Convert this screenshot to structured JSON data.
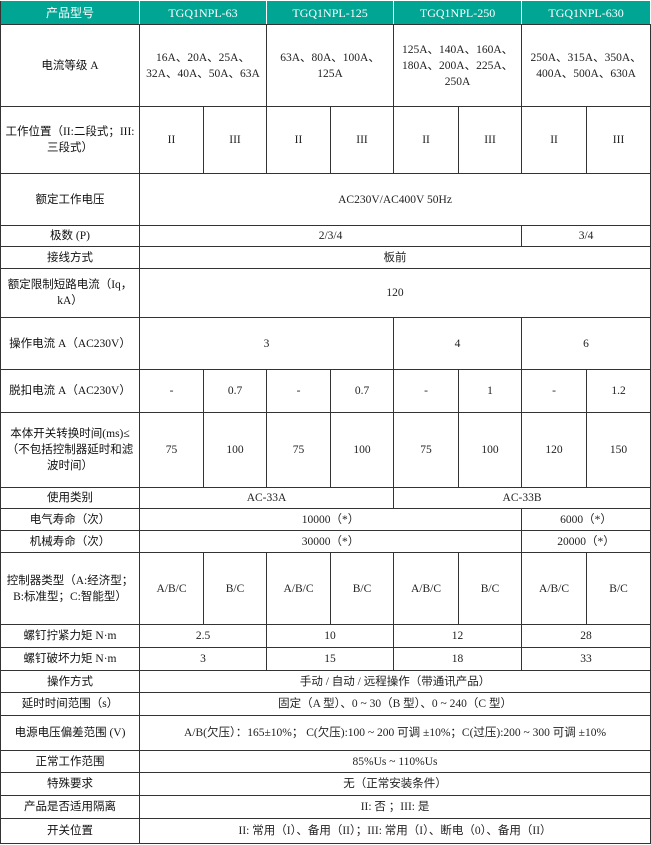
{
  "header": [
    "产品型号",
    "TGQ1NPL-63",
    "TGQ1NPL-125",
    "TGQ1NPL-250",
    "TGQ1NPL-630"
  ],
  "rows": [
    {
      "label": "电流等级 A",
      "cells": [
        {
          "text": "16A、20A、25A、32A、40A、50A、63A",
          "span": 2
        },
        {
          "text": "63A、80A、100A、125A",
          "span": 2
        },
        {
          "text": "125A、140A、160A、180A、200A、225A、250A",
          "span": 2
        },
        {
          "text": "250A、315A、350A、400A、500A、630A",
          "span": 2
        }
      ]
    },
    {
      "label": "工作位置（II:二段式；III:三段式）",
      "cells": [
        {
          "text": "II"
        },
        {
          "text": "III"
        },
        {
          "text": "II"
        },
        {
          "text": "III"
        },
        {
          "text": "II"
        },
        {
          "text": "III"
        },
        {
          "text": "II"
        },
        {
          "text": "III"
        }
      ]
    },
    {
      "label": "额定工作电压",
      "cells": [
        {
          "text": "AC230V/AC400V 50Hz",
          "span": 8
        }
      ]
    },
    {
      "label": "极数 (P)",
      "cells": [
        {
          "text": "2/3/4",
          "span": 6
        },
        {
          "text": "3/4",
          "span": 2
        }
      ]
    },
    {
      "label": "接线方式",
      "cells": [
        {
          "text": "板前",
          "span": 8
        }
      ]
    },
    {
      "label": "额定限制短路电流（Iq，kA）",
      "cells": [
        {
          "text": "120",
          "span": 8
        }
      ]
    },
    {
      "label": "操作电流 A（AC230V）",
      "cells": [
        {
          "text": "3",
          "span": 4
        },
        {
          "text": "4",
          "span": 2
        },
        {
          "text": "6",
          "span": 2
        }
      ]
    },
    {
      "label": "脱扣电流 A（AC230V）",
      "cells": [
        {
          "text": "-"
        },
        {
          "text": "0.7"
        },
        {
          "text": "-"
        },
        {
          "text": "0.7"
        },
        {
          "text": "-"
        },
        {
          "text": "1"
        },
        {
          "text": "-"
        },
        {
          "text": "1.2"
        }
      ]
    },
    {
      "label": "本体开关转换时间(ms)≤（不包括控制器延时和滤波时间）",
      "cells": [
        {
          "text": "75"
        },
        {
          "text": "100"
        },
        {
          "text": "75"
        },
        {
          "text": "100"
        },
        {
          "text": "75"
        },
        {
          "text": "100"
        },
        {
          "text": "120"
        },
        {
          "text": "150"
        }
      ]
    },
    {
      "label": "使用类别",
      "cells": [
        {
          "text": "AC-33A",
          "span": 4
        },
        {
          "text": "AC-33B",
          "span": 4
        }
      ]
    },
    {
      "label": "电气寿命（次）",
      "cells": [
        {
          "text": "10000（*）",
          "span": 6
        },
        {
          "text": "6000（*）",
          "span": 2
        }
      ]
    },
    {
      "label": "机械寿命（次）",
      "cells": [
        {
          "text": "30000（*）",
          "span": 6
        },
        {
          "text": "20000（*）",
          "span": 2
        }
      ]
    },
    {
      "label": "控制器类型（A:经济型；B:标准型；C:智能型）",
      "cells": [
        {
          "text": "A/B/C"
        },
        {
          "text": "B/C"
        },
        {
          "text": "A/B/C"
        },
        {
          "text": "B/C"
        },
        {
          "text": "A/B/C"
        },
        {
          "text": "B/C"
        },
        {
          "text": "A/B/C"
        },
        {
          "text": "B/C"
        }
      ]
    },
    {
      "label": "螺钉拧紧力矩 N·m",
      "cells": [
        {
          "text": "2.5",
          "span": 2
        },
        {
          "text": "10",
          "span": 2
        },
        {
          "text": "12",
          "span": 2
        },
        {
          "text": "28",
          "span": 2
        }
      ]
    },
    {
      "label": "螺钉破坏力矩 N·m",
      "cells": [
        {
          "text": "3",
          "span": 2
        },
        {
          "text": "15",
          "span": 2
        },
        {
          "text": "18",
          "span": 2
        },
        {
          "text": "33",
          "span": 2
        }
      ]
    },
    {
      "label": "操作方式",
      "cells": [
        {
          "text": "手动 / 自动 / 远程操作（带通讯产品）",
          "span": 8
        }
      ]
    },
    {
      "label": "延时时间范围（s）",
      "cells": [
        {
          "text": "固定（A 型）、0 ~ 30（B 型）、0 ~ 240（C 型）",
          "span": 8
        }
      ]
    },
    {
      "label": "电源电压偏差范围 (V)",
      "cells": [
        {
          "text": "A/B(欠压）：165±10%； C(欠压):100 ~ 200 可调 ±10%；C(过压):200 ~ 300 可调 ±10%",
          "span": 8
        }
      ]
    },
    {
      "label": "正常工作范围",
      "cells": [
        {
          "text": "85%Us ~ 110%Us",
          "span": 8
        }
      ]
    },
    {
      "label": "特殊要求",
      "cells": [
        {
          "text": "无（正常安装条件）",
          "span": 8
        }
      ]
    },
    {
      "label": "产品是否适用隔离",
      "cells": [
        {
          "text": "II: 否 ；III: 是",
          "span": 8
        }
      ]
    },
    {
      "label": "开关位置",
      "cells": [
        {
          "text": "II: 常用（I）、备用（II）；III: 常用（I）、断电（0）、备用（II）",
          "span": 8
        }
      ]
    }
  ]
}
